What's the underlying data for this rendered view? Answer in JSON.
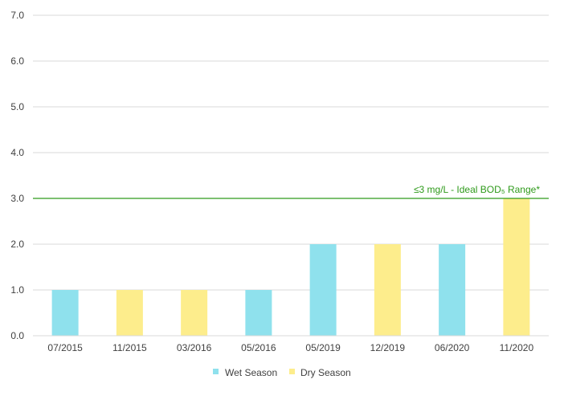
{
  "chart_data": {
    "type": "bar",
    "categories": [
      "07/2015",
      "11/2015",
      "03/2016",
      "05/2016",
      "05/2019",
      "12/2019",
      "06/2020",
      "11/2020"
    ],
    "values": [
      1.0,
      1.0,
      1.0,
      1.0,
      2.0,
      2.0,
      2.0,
      3.0
    ],
    "seasons": [
      "Wet Season",
      "Dry Season",
      "Dry Season",
      "Wet Season",
      "Wet Season",
      "Dry Season",
      "Wet Season",
      "Dry Season"
    ],
    "series": [
      {
        "name": "Wet Season",
        "color": "#8fe1ed"
      },
      {
        "name": "Dry Season",
        "color": "#fded8c"
      }
    ],
    "ylim": [
      0,
      7
    ],
    "yticks": [
      "0.0",
      "1.0",
      "2.0",
      "3.0",
      "4.0",
      "5.0",
      "6.0",
      "7.0"
    ],
    "grid": true,
    "legend_position": "bottom",
    "threshold": {
      "value": 3.0,
      "label": "≤3 mg/L - Ideal BOD₅ Range*",
      "color": "#2e9a1a"
    }
  }
}
